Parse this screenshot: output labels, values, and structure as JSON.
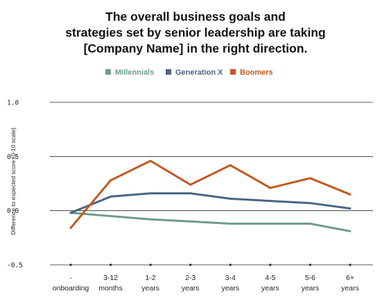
{
  "chart_data": {
    "type": "line",
    "title_lines": [
      "The overall business goals and",
      "strategies set by senior leadership are taking",
      "[Company Name] in the right direction."
    ],
    "ylabel": "Difference to expected score (0-10 scale)",
    "ylim": [
      -0.5,
      1.0
    ],
    "yticks": [
      "1.0",
      "0.5",
      "0.0",
      "-0.5"
    ],
    "ytick_values": [
      1.0,
      0.5,
      0.0,
      -0.5
    ],
    "grid": "horizontal",
    "legend_position": "top",
    "categories": [
      [
        "-",
        "onboarding"
      ],
      [
        "3-12",
        "months"
      ],
      [
        "1-2",
        "years"
      ],
      [
        "2-3",
        "years"
      ],
      [
        "3-4",
        "years"
      ],
      [
        "4-5",
        "years"
      ],
      [
        "5-6",
        "years"
      ],
      [
        "6+",
        "years"
      ]
    ],
    "series": [
      {
        "name": "Millennials",
        "color": "#6f9c8c",
        "values": [
          -0.02,
          -0.05,
          -0.08,
          -0.1,
          -0.12,
          -0.12,
          -0.12,
          -0.19
        ]
      },
      {
        "name": "Generation X",
        "color": "#4a6584",
        "values": [
          -0.02,
          0.13,
          0.16,
          0.16,
          0.11,
          0.09,
          0.07,
          0.02
        ]
      },
      {
        "name": "Boomers",
        "color": "#c2591d",
        "values": [
          -0.16,
          0.28,
          0.46,
          0.24,
          0.42,
          0.21,
          0.3,
          0.15
        ]
      }
    ]
  }
}
